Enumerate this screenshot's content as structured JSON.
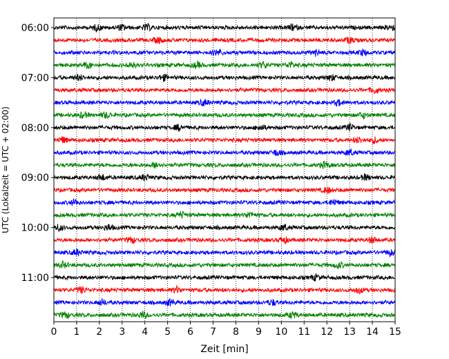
{
  "chart_data": {
    "type": "line",
    "xlabel": "Zeit  [min]",
    "ylabel": "UTC (Lokalzeit = UTC + 02:00)",
    "xlim": [
      0,
      15
    ],
    "x_ticks": [
      "0",
      "1",
      "2",
      "3",
      "4",
      "5",
      "6",
      "7",
      "8",
      "9",
      "10",
      "11",
      "12",
      "13",
      "14",
      "15"
    ],
    "y_tick_labels": [
      "06:00",
      "07:00",
      "08:00",
      "09:00",
      "10:00",
      "11:00"
    ],
    "grid": "vertical dotted",
    "traces_per_hour": 4,
    "minutes_per_trace": 15,
    "start_time": "06:00",
    "trace_colors": [
      "#000000",
      "#ff0000",
      "#0000ff",
      "#008000"
    ],
    "series": [
      {
        "start": "06:00",
        "color": "#000000",
        "bursts": [
          1.9,
          3.0,
          4.1,
          10.5,
          14.8
        ]
      },
      {
        "start": "06:15",
        "color": "#ff0000",
        "bursts": [
          4.6,
          13.0
        ]
      },
      {
        "start": "06:30",
        "color": "#0000ff",
        "bursts": [
          7.2,
          11.5,
          13.6
        ]
      },
      {
        "start": "06:45",
        "color": "#008000",
        "bursts": [
          1.5,
          3.4,
          6.3,
          9.2,
          10.4
        ]
      },
      {
        "start": "07:00",
        "color": "#000000",
        "bursts": [
          1.1,
          4.8,
          12.2
        ]
      },
      {
        "start": "07:15",
        "color": "#ff0000",
        "bursts": [
          14.1
        ]
      },
      {
        "start": "07:30",
        "color": "#0000ff",
        "bursts": [
          6.6,
          12.5
        ]
      },
      {
        "start": "07:45",
        "color": "#008000",
        "bursts": [
          1.3,
          2.3,
          13.6
        ]
      },
      {
        "start": "08:00",
        "color": "#000000",
        "bursts": [
          5.5,
          9.1,
          13.0
        ]
      },
      {
        "start": "08:15",
        "color": "#ff0000",
        "bursts": [
          0.4,
          13.4,
          14.1
        ]
      },
      {
        "start": "08:30",
        "color": "#0000ff",
        "bursts": [
          9.8,
          13.0
        ]
      },
      {
        "start": "08:45",
        "color": "#008000",
        "bursts": [
          4.5,
          11.9
        ]
      },
      {
        "start": "09:00",
        "color": "#000000",
        "bursts": [
          2.1,
          4.0,
          13.7
        ]
      },
      {
        "start": "09:15",
        "color": "#ff0000",
        "bursts": [
          12.0
        ]
      },
      {
        "start": "09:30",
        "color": "#0000ff",
        "bursts": [
          0.9,
          12.3
        ]
      },
      {
        "start": "09:45",
        "color": "#008000",
        "bursts": [
          5.6,
          8.6
        ]
      },
      {
        "start": "10:00",
        "color": "#000000",
        "bursts": [
          0.2,
          2.4,
          10.1
        ]
      },
      {
        "start": "10:15",
        "color": "#ff0000",
        "bursts": [
          3.4,
          10.1,
          14.0
        ]
      },
      {
        "start": "10:30",
        "color": "#0000ff",
        "bursts": [
          1.0,
          14.8
        ]
      },
      {
        "start": "10:45",
        "color": "#008000",
        "bursts": [
          0.4,
          12.5
        ]
      },
      {
        "start": "11:00",
        "color": "#000000",
        "bursts": [
          11.5
        ]
      },
      {
        "start": "11:15",
        "color": "#ff0000",
        "bursts": [
          1.2,
          5.4,
          13.4
        ]
      },
      {
        "start": "11:30",
        "color": "#0000ff",
        "bursts": [
          2.1,
          5.1,
          9.6
        ]
      },
      {
        "start": "11:45",
        "color": "#008000",
        "bursts": [
          0.5,
          3.9,
          10.5
        ]
      }
    ]
  }
}
